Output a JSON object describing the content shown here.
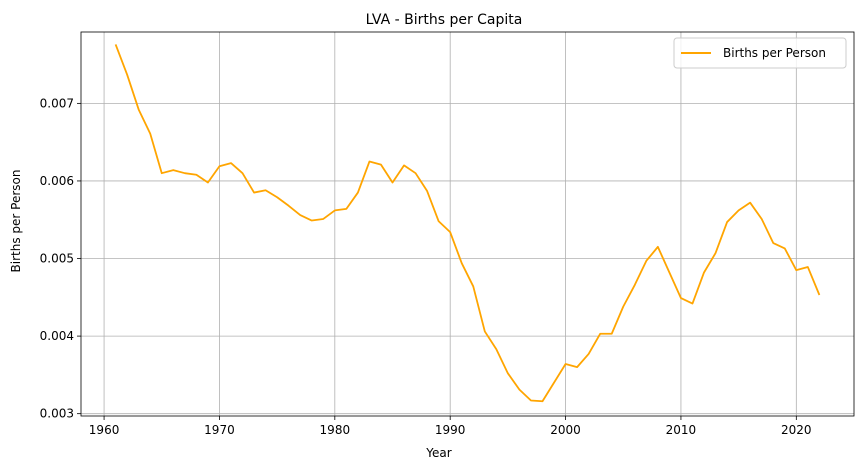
{
  "chart_data": {
    "type": "line",
    "title": "LVA - Births per Capita",
    "xlabel": "Year",
    "ylabel": "Births per Person",
    "xlim": [
      1958,
      2025
    ],
    "ylim": [
      0.00297,
      0.00792
    ],
    "xticks": [
      1960,
      1970,
      1980,
      1990,
      2000,
      2010,
      2020
    ],
    "yticks": [
      0.003,
      0.004,
      0.005,
      0.006,
      0.007
    ],
    "ytick_labels": [
      "0.003",
      "0.004",
      "0.005",
      "0.006",
      "0.007"
    ],
    "grid": true,
    "legend_position": "top-right",
    "series": [
      {
        "name": "Births per Person",
        "color": "#FFA500",
        "x": [
          1961,
          1962,
          1963,
          1964,
          1965,
          1966,
          1967,
          1968,
          1969,
          1970,
          1971,
          1972,
          1973,
          1974,
          1975,
          1976,
          1977,
          1978,
          1979,
          1980,
          1981,
          1982,
          1983,
          1984,
          1985,
          1986,
          1987,
          1988,
          1989,
          1990,
          1991,
          1992,
          1993,
          1994,
          1995,
          1996,
          1997,
          1998,
          1999,
          2000,
          2001,
          2002,
          2003,
          2004,
          2005,
          2006,
          2007,
          2008,
          2009,
          2010,
          2011,
          2012,
          2013,
          2014,
          2015,
          2016,
          2017,
          2018,
          2019,
          2020,
          2021,
          2022
        ],
        "y": [
          0.00776,
          0.00737,
          0.00692,
          0.00661,
          0.0061,
          0.00614,
          0.0061,
          0.00608,
          0.00598,
          0.00619,
          0.00623,
          0.0061,
          0.00585,
          0.00588,
          0.00579,
          0.00568,
          0.00556,
          0.00549,
          0.00551,
          0.00562,
          0.00564,
          0.00585,
          0.00625,
          0.00621,
          0.00598,
          0.0062,
          0.0061,
          0.00587,
          0.00548,
          0.00534,
          0.00494,
          0.00464,
          0.00406,
          0.00383,
          0.00352,
          0.00331,
          0.00317,
          0.00316,
          0.0034,
          0.00364,
          0.0036,
          0.00377,
          0.00403,
          0.00403,
          0.00438,
          0.00466,
          0.00497,
          0.00515,
          0.00482,
          0.00449,
          0.00442,
          0.00482,
          0.00507,
          0.00547,
          0.00562,
          0.00572,
          0.00551,
          0.0052,
          0.00513,
          0.00485,
          0.00489,
          0.00453
        ]
      }
    ]
  }
}
